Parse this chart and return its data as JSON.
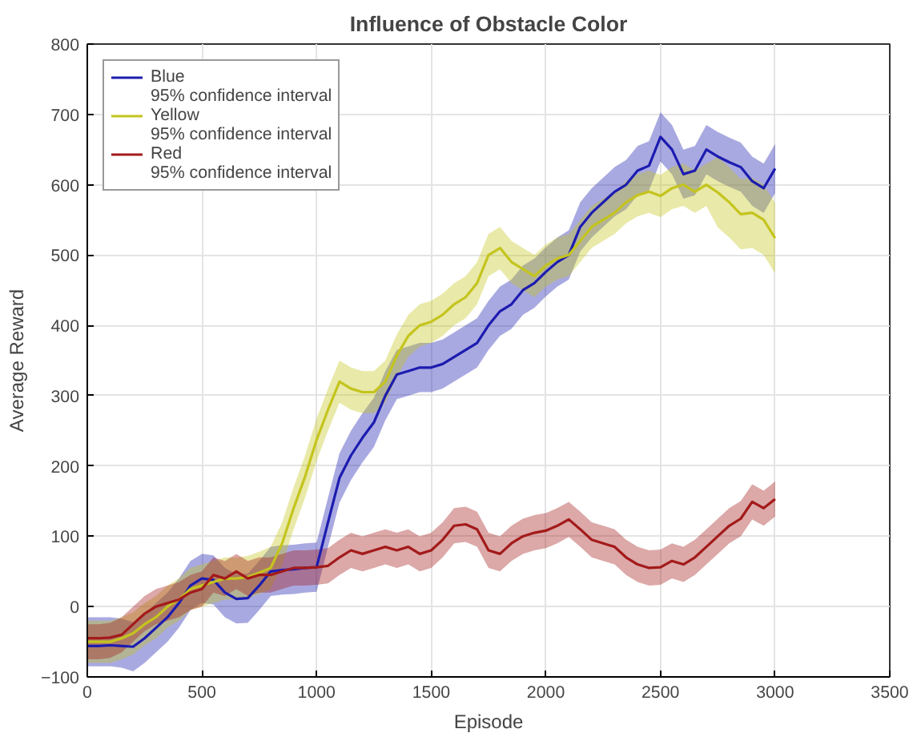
{
  "chart_data": {
    "type": "line",
    "title": "Influence of Obstacle Color",
    "xlabel": "Episode",
    "ylabel": "Average Reward",
    "annotations": [
      "95% confidence interval",
      "95% confidence interval",
      "95% confidence interval"
    ],
    "x": [
      0,
      50,
      100,
      150,
      200,
      250,
      300,
      350,
      400,
      450,
      500,
      550,
      600,
      650,
      700,
      750,
      800,
      850,
      900,
      950,
      1000,
      1050,
      1100,
      1150,
      1200,
      1250,
      1300,
      1350,
      1400,
      1450,
      1500,
      1550,
      1600,
      1650,
      1700,
      1750,
      1800,
      1850,
      1900,
      1950,
      2000,
      2050,
      2100,
      2150,
      2200,
      2250,
      2300,
      2350,
      2400,
      2450,
      2500,
      2550,
      2600,
      2650,
      2700,
      2750,
      2800,
      2850,
      2900,
      2950,
      3000
    ],
    "xlim": [
      0,
      3500
    ],
    "xticks": [
      0,
      500,
      1000,
      1500,
      2000,
      2500,
      3000,
      3500
    ],
    "ylim": [
      -100,
      800
    ],
    "yticks": [
      -100,
      0,
      100,
      200,
      300,
      400,
      500,
      600,
      700,
      800
    ],
    "grid": true,
    "legend": "top left",
    "line_style": "solid",
    "series": [
      {
        "name": "Blue",
        "color": "#1c1cb0",
        "values": [
          -56,
          -56,
          -55,
          -56,
          -57,
          -45,
          -30,
          -15,
          5,
          30,
          40,
          38,
          20,
          11,
          12,
          30,
          50,
          52,
          53,
          55,
          56,
          120,
          183,
          215,
          240,
          262,
          300,
          330,
          335,
          340,
          340,
          345,
          355,
          365,
          375,
          400,
          420,
          430,
          450,
          460,
          476,
          490,
          500,
          540,
          560,
          575,
          590,
          600,
          620,
          627,
          668,
          650,
          615,
          620,
          650,
          640,
          632,
          625,
          605,
          595,
          623
        ],
        "lower": [
          -85,
          -85,
          -85,
          -87,
          -92,
          -80,
          -65,
          -50,
          -30,
          -5,
          5,
          3,
          -15,
          -24,
          -23,
          -5,
          15,
          17,
          18,
          20,
          21,
          85,
          148,
          180,
          205,
          227,
          265,
          295,
          300,
          305,
          305,
          310,
          320,
          330,
          340,
          365,
          385,
          395,
          415,
          425,
          441,
          455,
          465,
          505,
          525,
          540,
          555,
          565,
          585,
          592,
          633,
          615,
          580,
          585,
          615,
          605,
          597,
          590,
          570,
          560,
          588
        ],
        "upper": [
          -15,
          -15,
          -15,
          -17,
          -22,
          -10,
          5,
          20,
          40,
          65,
          75,
          73,
          55,
          46,
          47,
          65,
          85,
          87,
          88,
          90,
          91,
          155,
          218,
          250,
          275,
          297,
          335,
          365,
          370,
          375,
          375,
          380,
          390,
          400,
          410,
          435,
          455,
          465,
          485,
          495,
          511,
          525,
          535,
          575,
          595,
          610,
          625,
          635,
          655,
          662,
          703,
          685,
          650,
          655,
          685,
          675,
          667,
          660,
          640,
          630,
          658
        ]
      },
      {
        "name": "Yellow",
        "color": "#c4c41e",
        "values": [
          -50,
          -50,
          -50,
          -45,
          -38,
          -25,
          -15,
          0,
          10,
          25,
          30,
          35,
          40,
          40,
          42,
          48,
          55,
          90,
          140,
          185,
          237,
          280,
          320,
          310,
          305,
          305,
          320,
          357,
          385,
          400,
          405,
          415,
          430,
          440,
          460,
          500,
          510,
          490,
          480,
          470,
          485,
          495,
          500,
          520,
          540,
          550,
          560,
          575,
          585,
          590,
          584,
          595,
          600,
          590,
          600,
          589,
          575,
          558,
          560,
          550,
          524
        ],
        "lower": [
          -80,
          -80,
          -80,
          -75,
          -68,
          -55,
          -45,
          -30,
          -20,
          -5,
          0,
          5,
          10,
          10,
          12,
          18,
          25,
          60,
          110,
          155,
          207,
          250,
          290,
          280,
          275,
          275,
          290,
          327,
          355,
          370,
          375,
          385,
          400,
          410,
          430,
          470,
          480,
          460,
          450,
          440,
          455,
          465,
          470,
          490,
          510,
          520,
          530,
          545,
          555,
          560,
          554,
          565,
          570,
          560,
          570,
          539,
          525,
          508,
          510,
          500,
          474
        ],
        "upper": [
          -20,
          -20,
          -20,
          -15,
          -8,
          5,
          15,
          30,
          40,
          55,
          60,
          65,
          70,
          70,
          72,
          78,
          85,
          120,
          170,
          215,
          267,
          310,
          350,
          340,
          335,
          335,
          350,
          387,
          415,
          430,
          435,
          445,
          460,
          470,
          490,
          530,
          540,
          520,
          510,
          500,
          515,
          525,
          530,
          550,
          570,
          580,
          590,
          605,
          615,
          620,
          614,
          625,
          630,
          620,
          630,
          639,
          625,
          608,
          610,
          600,
          574
        ]
      },
      {
        "name": "Red",
        "color": "#a31a1a",
        "values": [
          -45,
          -45,
          -44,
          -40,
          -25,
          -10,
          0,
          5,
          10,
          20,
          25,
          45,
          40,
          50,
          40,
          45,
          45,
          50,
          55,
          55,
          56,
          58,
          70,
          80,
          75,
          80,
          85,
          80,
          85,
          75,
          80,
          95,
          115,
          117,
          110,
          80,
          75,
          90,
          100,
          105,
          108,
          115,
          124,
          110,
          95,
          90,
          85,
          70,
          60,
          55,
          56,
          65,
          60,
          70,
          85,
          100,
          115,
          125,
          149,
          140,
          153
        ],
        "lower": [
          -75,
          -75,
          -73,
          -65,
          -50,
          -35,
          -25,
          -20,
          -15,
          -5,
          0,
          20,
          15,
          25,
          15,
          20,
          20,
          25,
          30,
          30,
          31,
          33,
          45,
          55,
          50,
          55,
          60,
          55,
          60,
          50,
          55,
          70,
          90,
          92,
          85,
          55,
          50,
          65,
          75,
          80,
          83,
          90,
          99,
          85,
          70,
          65,
          60,
          45,
          35,
          30,
          31,
          40,
          35,
          45,
          60,
          75,
          90,
          100,
          124,
          115,
          128
        ],
        "upper": [
          -25,
          -25,
          -23,
          -15,
          0,
          15,
          25,
          30,
          35,
          45,
          50,
          70,
          65,
          75,
          65,
          70,
          70,
          75,
          80,
          80,
          81,
          83,
          95,
          105,
          100,
          105,
          110,
          105,
          110,
          100,
          105,
          120,
          140,
          142,
          135,
          105,
          100,
          115,
          125,
          130,
          133,
          140,
          149,
          135,
          120,
          115,
          110,
          95,
          85,
          80,
          81,
          90,
          85,
          95,
          110,
          125,
          140,
          150,
          174,
          165,
          178
        ]
      }
    ]
  }
}
